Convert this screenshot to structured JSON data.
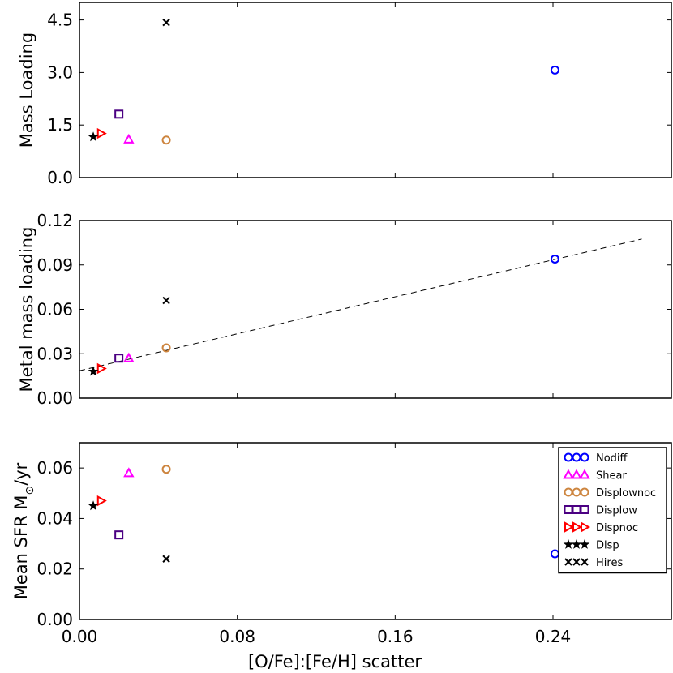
{
  "chart_data": [
    {
      "type": "scatter",
      "id": "mass",
      "ylabel": "Mass Loading",
      "xlim": [
        0,
        0.3
      ],
      "ylim": [
        0,
        5.0
      ],
      "yticks": [
        0,
        1.5,
        3.0,
        4.5
      ],
      "ytick_labels": [
        "0.0",
        "1.5",
        "3.0",
        "4.5"
      ],
      "points": [
        {
          "series": "Nodiff",
          "x": 0.241,
          "y": 3.07
        },
        {
          "series": "Shear",
          "x": 0.025,
          "y": 1.09
        },
        {
          "series": "Displownoc",
          "x": 0.044,
          "y": 1.07
        },
        {
          "series": "Displow",
          "x": 0.02,
          "y": 1.81
        },
        {
          "series": "Dispnoc",
          "x": 0.011,
          "y": 1.26
        },
        {
          "series": "Disp",
          "x": 0.007,
          "y": 1.16
        },
        {
          "series": "Hires",
          "x": 0.044,
          "y": 4.43
        }
      ]
    },
    {
      "type": "scatter",
      "id": "metal",
      "ylabel": "Metal mass loading",
      "xlim": [
        0,
        0.3
      ],
      "ylim": [
        0,
        0.12
      ],
      "yticks": [
        0,
        0.03,
        0.06,
        0.09,
        0.12
      ],
      "ytick_labels": [
        "0.00",
        "0.03",
        "0.06",
        "0.09",
        "0.12"
      ],
      "fit_line": {
        "x": [
          0.0,
          0.285
        ],
        "y": [
          0.0185,
          0.1075
        ]
      },
      "points": [
        {
          "series": "Nodiff",
          "x": 0.241,
          "y": 0.094
        },
        {
          "series": "Shear",
          "x": 0.025,
          "y": 0.027
        },
        {
          "series": "Displownoc",
          "x": 0.044,
          "y": 0.034
        },
        {
          "series": "Displow",
          "x": 0.02,
          "y": 0.027
        },
        {
          "series": "Dispnoc",
          "x": 0.011,
          "y": 0.02
        },
        {
          "series": "Disp",
          "x": 0.007,
          "y": 0.018
        },
        {
          "series": "Hires",
          "x": 0.044,
          "y": 0.066
        }
      ]
    },
    {
      "type": "scatter",
      "id": "sfr",
      "ylabel_main": "Mean SFR M",
      "ylabel_sun": "⊙",
      "ylabel_unit": "/yr",
      "xlabel": "[O/Fe]:[Fe/H] scatter",
      "xlim": [
        0,
        0.3
      ],
      "ylim": [
        0,
        0.07
      ],
      "xticks": [
        0,
        0.08,
        0.16,
        0.24
      ],
      "xtick_labels": [
        "0.00",
        "0.08",
        "0.16",
        "0.24"
      ],
      "yticks": [
        0,
        0.02,
        0.04,
        0.06
      ],
      "ytick_labels": [
        "0.00",
        "0.02",
        "0.04",
        "0.06"
      ],
      "legend_position": "top-right",
      "points": [
        {
          "series": "Nodiff",
          "x": 0.241,
          "y": 0.026
        },
        {
          "series": "Shear",
          "x": 0.025,
          "y": 0.058
        },
        {
          "series": "Displownoc",
          "x": 0.044,
          "y": 0.0595
        },
        {
          "series": "Displow",
          "x": 0.02,
          "y": 0.0335
        },
        {
          "series": "Dispnoc",
          "x": 0.011,
          "y": 0.047
        },
        {
          "series": "Disp",
          "x": 0.007,
          "y": 0.045
        },
        {
          "series": "Hires",
          "x": 0.044,
          "y": 0.024
        }
      ]
    }
  ],
  "series": [
    {
      "name": "Nodiff",
      "marker": "circle",
      "color": "#0000ff"
    },
    {
      "name": "Shear",
      "marker": "triangle-up",
      "color": "#ff00ff"
    },
    {
      "name": "Displownoc",
      "marker": "circle",
      "color": "#cd853f"
    },
    {
      "name": "Displow",
      "marker": "square",
      "color": "#4b0082"
    },
    {
      "name": "Dispnoc",
      "marker": "triangle-right",
      "color": "#ff0000"
    },
    {
      "name": "Disp",
      "marker": "star",
      "color": "#000000"
    },
    {
      "name": "Hires",
      "marker": "x",
      "color": "#000000"
    }
  ]
}
